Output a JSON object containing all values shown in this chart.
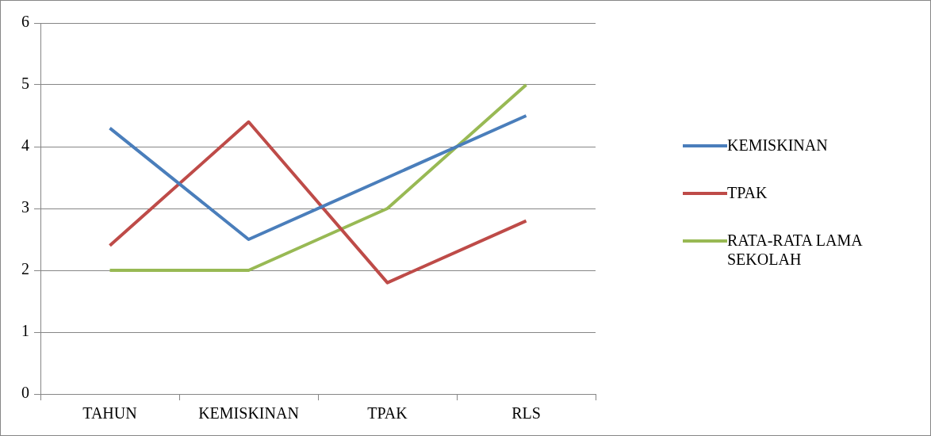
{
  "chart_data": {
    "type": "line",
    "categories": [
      "TAHUN",
      "KEMISKINAN",
      "TPAK",
      "RLS"
    ],
    "series": [
      {
        "name": "KEMISKINAN",
        "color": "#4a7ebb",
        "values": [
          4.3,
          2.5,
          3.5,
          4.5
        ]
      },
      {
        "name": "TPAK",
        "color": "#be4b48",
        "values": [
          2.4,
          4.4,
          1.8,
          2.8
        ]
      },
      {
        "name": "RATA-RATA LAMA SEKOLAH",
        "color": "#98b954",
        "values": [
          2,
          2,
          3,
          5
        ]
      }
    ],
    "ylim": [
      0,
      6
    ],
    "yticks": [
      0,
      1,
      2,
      3,
      4,
      5,
      6
    ],
    "grid": "y",
    "legend": "right",
    "marker": "none",
    "line_style": "solid"
  }
}
